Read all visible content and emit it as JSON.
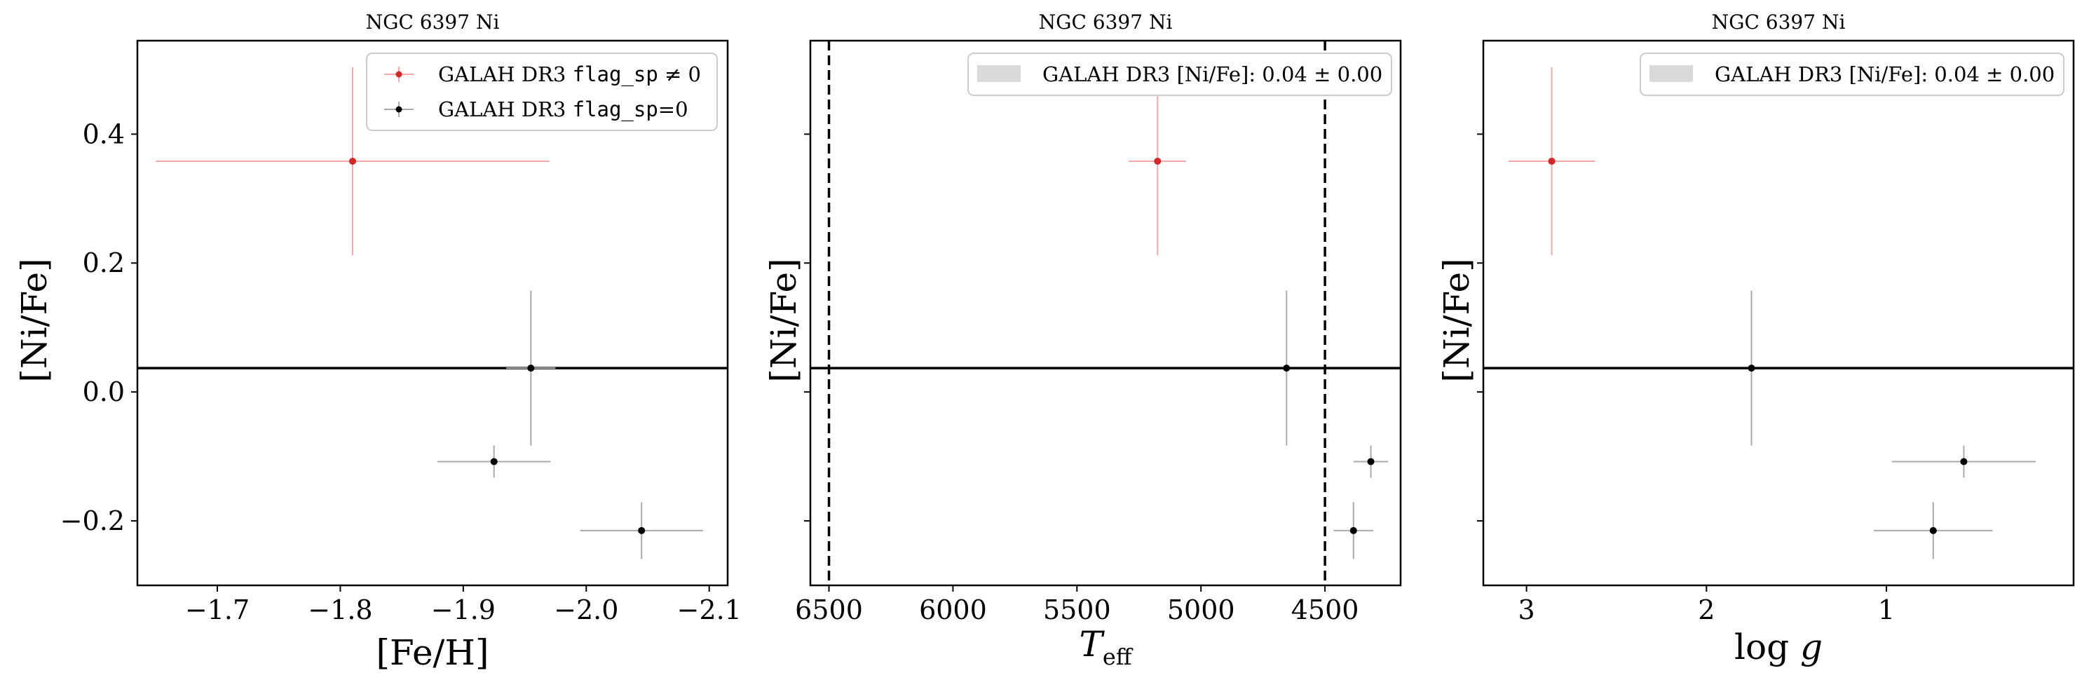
{
  "figure": {
    "panels": [
      {
        "title": "NGC 6397 Ni",
        "xlabel": "[Fe/H]",
        "ylabel": "[Ni/Fe]",
        "legend": [
          "GALAH DR3 flag_sp ≠ 0",
          "GALAH DR3 flag_sp=0"
        ]
      },
      {
        "title": "NGC 6397 Ni",
        "xlabel": "T_eff",
        "ylabel": "[Ni/Fe]",
        "legend": [
          "GALAH DR3 [Ni/Fe]: 0.04 ± 0.00"
        ]
      },
      {
        "title": "NGC 6397 Ni",
        "xlabel": "log g",
        "ylabel": "[Ni/Fe]",
        "legend": [
          "GALAH DR3 [Ni/Fe]: 0.04 ± 0.00"
        ]
      }
    ]
  },
  "chart_data": [
    {
      "type": "scatter",
      "title": "NGC 6397 Ni",
      "xlabel": "[Fe/H]",
      "ylabel": "[Ni/Fe]",
      "xlim": [
        -1.635,
        -2.115
      ],
      "ylim": [
        -0.3,
        0.545
      ],
      "x_inverted": true,
      "xticks": [
        -1.7,
        -1.8,
        -1.9,
        -2.0,
        -2.1
      ],
      "xtick_labels": [
        "−1.7",
        "−1.8",
        "−1.9",
        "−2.0",
        "−2.1"
      ],
      "yticks": [
        -0.2,
        0.0,
        0.2,
        0.4
      ],
      "ytick_labels": [
        "−0.2",
        "0.0",
        "0.2",
        "0.4"
      ],
      "ytick_labels_visible": true,
      "legend_position": "upper right",
      "hlines": [
        0.037
      ],
      "series": [
        {
          "name": "GALAH DR3 flag_sp ≠ 0",
          "color": "#d62728",
          "points": [
            {
              "x": -1.81,
              "y": 0.358,
              "xerr": 0.16,
              "yerr": 0.146
            }
          ]
        },
        {
          "name": "GALAH DR3 flag_sp=0",
          "color": "#000000",
          "points": [
            {
              "x": -1.955,
              "y": 0.037,
              "xerr": 0.02,
              "yerr": 0.12
            },
            {
              "x": -1.925,
              "y": -0.108,
              "xerr": 0.046,
              "yerr": 0.025
            },
            {
              "x": -2.045,
              "y": -0.215,
              "xerr": 0.05,
              "yerr": 0.044
            }
          ]
        }
      ]
    },
    {
      "type": "scatter",
      "title": "NGC 6397 Ni",
      "xlabel": "T_eff",
      "ylabel": "[Ni/Fe]",
      "xlim": [
        6575,
        4195
      ],
      "ylim": [
        -0.3,
        0.545
      ],
      "x_inverted": true,
      "xticks": [
        6500,
        6000,
        5500,
        5000,
        4500
      ],
      "xtick_labels": [
        "6500",
        "6000",
        "5500",
        "5000",
        "4500"
      ],
      "yticks": [
        -0.2,
        0.0,
        0.2,
        0.4
      ],
      "ytick_labels_visible": false,
      "legend_position": "upper right",
      "hlines": [
        0.037
      ],
      "vlines": [
        6500,
        4500
      ],
      "series": [
        {
          "color": "#d62728",
          "points": [
            {
              "x": 5175,
              "y": 0.358,
              "xerr": 115,
              "yerr": 0.146
            }
          ]
        },
        {
          "color": "#000000",
          "points": [
            {
              "x": 4655,
              "y": 0.037,
              "xerr": 0,
              "yerr": 0.12
            },
            {
              "x": 4315,
              "y": -0.108,
              "xerr": 70,
              "yerr": 0.025
            },
            {
              "x": 4385,
              "y": -0.215,
              "xerr": 80,
              "yerr": 0.044
            }
          ]
        }
      ]
    },
    {
      "type": "scatter",
      "title": "NGC 6397 Ni",
      "xlabel": "log g",
      "ylabel": "[Ni/Fe]",
      "xlim": [
        3.24,
        -0.04
      ],
      "ylim": [
        -0.3,
        0.545
      ],
      "x_inverted": true,
      "xticks": [
        3,
        2,
        1
      ],
      "xtick_labels": [
        "3",
        "2",
        "1"
      ],
      "yticks": [
        -0.2,
        0.0,
        0.2,
        0.4
      ],
      "ytick_labels_visible": false,
      "legend_position": "upper right",
      "hlines": [
        0.037
      ],
      "series": [
        {
          "color": "#d62728",
          "points": [
            {
              "x": 2.86,
              "y": 0.358,
              "xerr": 0.24,
              "yerr": 0.146
            }
          ]
        },
        {
          "color": "#000000",
          "points": [
            {
              "x": 1.75,
              "y": 0.037,
              "xerr": 0,
              "yerr": 0.12
            },
            {
              "x": 0.57,
              "y": -0.108,
              "xerr": 0.4,
              "yerr": 0.025
            },
            {
              "x": 0.74,
              "y": -0.215,
              "xerr": 0.33,
              "yerr": 0.044
            }
          ]
        }
      ]
    }
  ]
}
